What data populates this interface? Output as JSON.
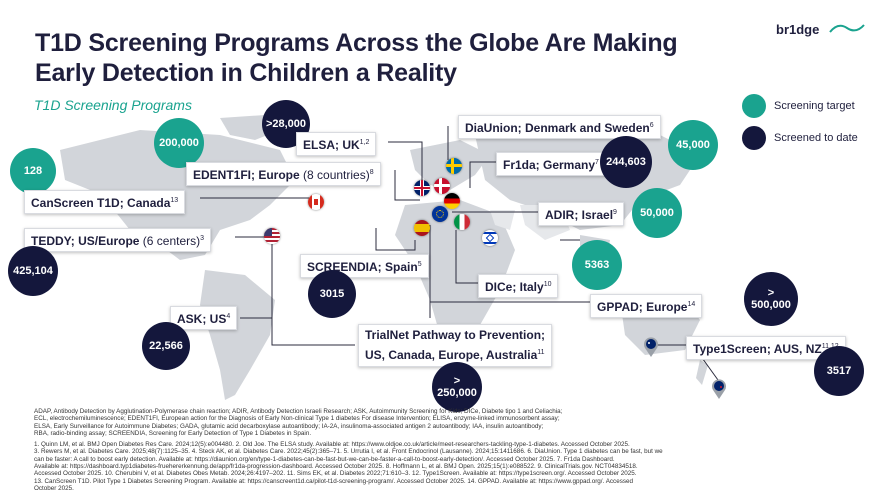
{
  "header": {
    "title_line1": "T1D Screening Programs Across the Globe Are Making",
    "title_line2": "Early Detection in Children a Reality",
    "subtitle": "T1D Screening Programs"
  },
  "logo": {
    "text": "br1dge"
  },
  "legend": {
    "target_label": "Screening target",
    "screened_label": "Screened to date",
    "target_color": "#1aa38f",
    "screened_color": "#14173c"
  },
  "programs": {
    "canscreen": {
      "name": "CanScreen T1D; Canada",
      "ref": "13",
      "value": "128"
    },
    "teddy": {
      "name": "TEDDY; US/Europe",
      "extra": "(6 centers)",
      "ref": "3",
      "value": "425,104"
    },
    "ask": {
      "name": "ASK; US",
      "ref": "4",
      "value": "22,566"
    },
    "edentifi": {
      "name": "EDENT1FI; Europe",
      "extra": "(8 countries)",
      "ref": "8",
      "value": "200,000"
    },
    "elsa": {
      "name": "ELSA; UK",
      "ref": "1,2",
      "value": ">28,000"
    },
    "diaunion": {
      "name": "DiaUnion; Denmark and Sweden",
      "ref": "6",
      "value": "45,000"
    },
    "fr1da": {
      "name": "Fr1da; Germany",
      "ref": "7",
      "value": "244,603"
    },
    "adir": {
      "name": "ADIR; Israel",
      "ref": "9",
      "value": "50,000"
    },
    "screendia": {
      "name": "SCREENDIA; Spain",
      "ref": "5",
      "value": "3015"
    },
    "dice": {
      "name": "DICe; Italy",
      "ref": "10",
      "value": "5363"
    },
    "gppad": {
      "name": "GPPAD; Europe",
      "ref": "14",
      "value": ">\n500,000"
    },
    "trialnet": {
      "name_line1": "TrialNet Pathway to Prevention;",
      "name_line2": "US, Canada, Europe, Australia",
      "ref": "11",
      "value": ">\n250,000"
    },
    "type1screen": {
      "name": "Type1Screen; AUS, NZ",
      "ref": "11,12",
      "value": "3517"
    }
  },
  "icons": [
    "flag-canada-icon",
    "flag-us-icon",
    "flag-uk-icon",
    "flag-denmark-icon",
    "flag-sweden-icon",
    "flag-germany-icon",
    "flag-eu-icon",
    "flag-spain-icon",
    "flag-italy-icon",
    "flag-israel-icon",
    "pin-australia-icon",
    "pin-newzealand-icon"
  ],
  "footnotes": {
    "abbrev": [
      "ADAP, Antibody Detection by Agglutination-Polymerase chain reaction; ADIR, Antibody Detection Israeli Research; ASK, Autoimmunity Screening for Kids; DICe, Diabete tipo 1 and Celiachia;",
      "ECL, electrochemiluminescence; EDENT1FI, European action for the Diagnosis of Early Non-clinical Type 1 diabetes For disease Intervention; ELISA, enzyme-linked immunosorbent assay;",
      "ELSA, Early Surveillance for Autoimmune Diabetes; GADA, glutamic acid decarboxylase autoantibody; IA-2A, insulinoma-associated antigen 2 autoantibody; IAA, insulin autoantibody;",
      "RBA, radio-binding assay; SCREENDIA, Screening for Early Detection of Type 1 Diabetes in Spain."
    ],
    "refs": [
      "1. Quinn LM, et al. BMJ Open Diabetes Res Care. 2024;12(5):e004480. 2. Old Joe. The ELSA study. Available at: https://www.oldjoe.co.uk/article/meet-researchers-tackling-type-1-diabetes. Accessed October 2025.",
      "3. Rewers M, et al. Diabetes Care. 2025;48(7):1125–35. 4. Steck AK, et al. Diabetes Care. 2022;45(2):365–71. 5. Urrutia I, et al. Front Endocrinol (Lausanne). 2024;15:1411686. 6. DiaUnion. Type 1 diabetes can be fast, but we",
      "can be faster: A call to boost early detection. Available at: https://diaunion.org/en/type-1-diabetes-can-be-fast-but-we-can-be-faster-a-call-to-boost-early-detection/. Accessed October 2025. 7. Fr1da Dashboard.",
      "Available at: https://dashboard.typ1diabetes-fruehererkennung.de/app/fr1da-progression-dashboard. Accessed October 2025. 8. Hoffmann L, et al. BMJ Open. 2025;15(1):e088522. 9. ClinicalTrials.gov. NCT04834518.",
      "Accessed October 2025. 10. Cherubini V, et al. Diabetes Obes Metab. 2024;26:4197–202. 11. Sims EK, et al. Diabetes 2022;71:610–3. 12. Type1Screen. Available at: https://type1screen.org/. Accessed October 2025.",
      "13. CanScreen T1D. Pilot Type 1 Diabetes Screening Program. Available at: https://canscreent1d.ca/pilot-t1d-screening-program/. Accessed October 2025. 14. GPPAD. Available at: https://www.gppad.org/. Accessed",
      "October 2025."
    ]
  }
}
